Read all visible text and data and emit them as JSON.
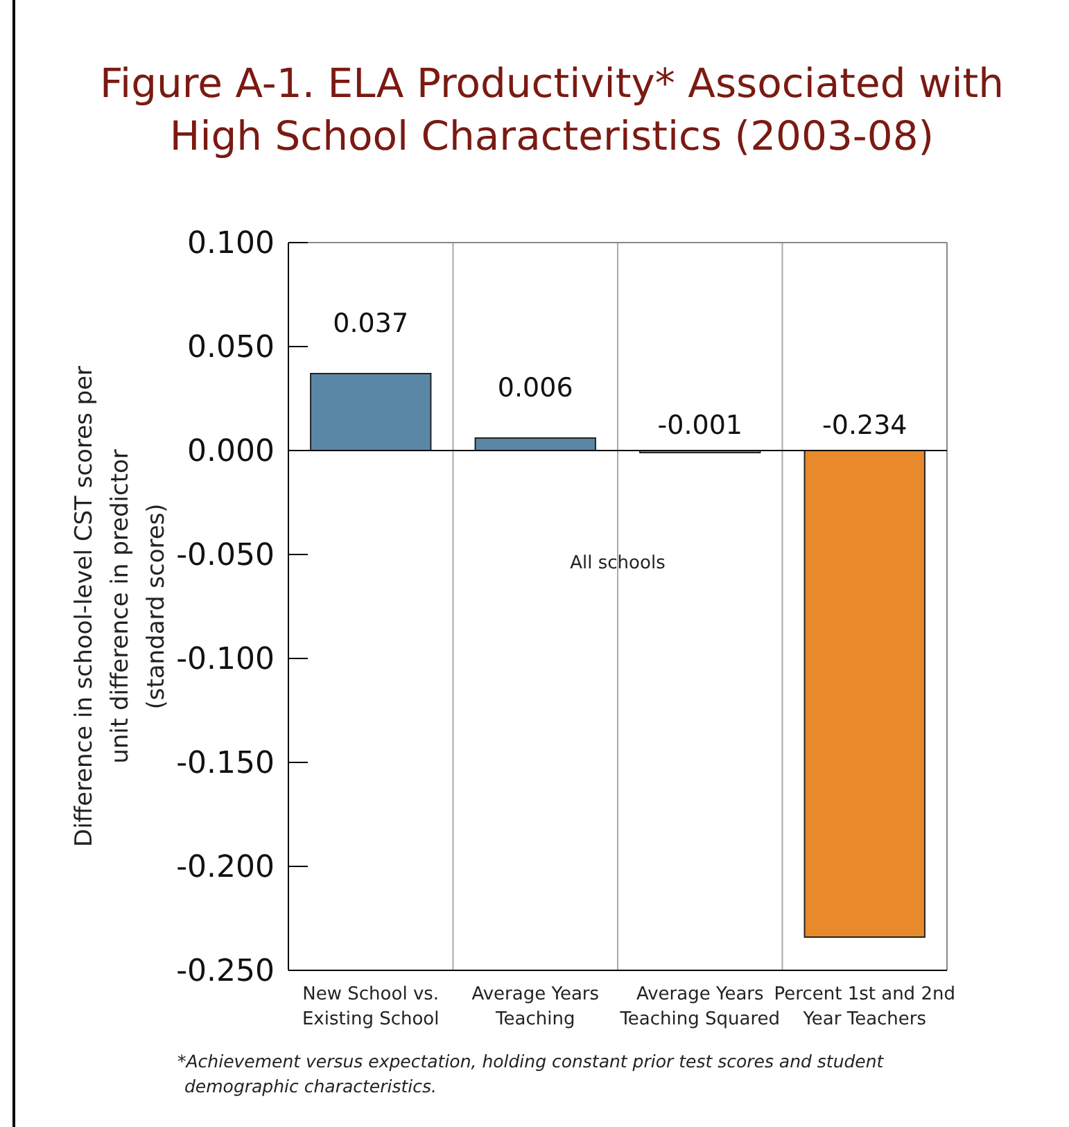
{
  "chart_data": {
    "type": "bar",
    "title": "Figure A-1. ELA Productivity* Associated with High School Characteristics (2003-08)",
    "ylabel": "Difference in school-level CST scores per unit difference in predictor (standard scores)",
    "categories": [
      "New School vs. Existing School",
      "Average Years Teaching",
      "Average Years Teaching Squared",
      "Percent 1st and 2nd Year Teachers"
    ],
    "values": [
      0.037,
      0.006,
      -0.001,
      -0.234
    ],
    "colors": [
      "#5b87a6",
      "#5b87a6",
      "#e8892b",
      "#e8892b"
    ],
    "data_labels": true,
    "ylim": [
      -0.25,
      0.1
    ],
    "yticks": [
      {
        "value": 0.1,
        "label": "0.100"
      },
      {
        "value": 0.05,
        "label": "0.050"
      },
      {
        "value": 0,
        "label": "0.000"
      },
      {
        "value": -0.05,
        "label": "-0.050"
      },
      {
        "value": -0.1,
        "label": "-0.100"
      },
      {
        "value": -0.15,
        "label": "-0.150"
      },
      {
        "value": -0.2,
        "label": "-0.200"
      },
      {
        "value": -0.25,
        "label": "-0.250"
      }
    ],
    "grid": "x",
    "annotations": [
      "All schools",
      "*Achievement versus expectation, holding constant prior test scores and student demographic characteristics."
    ]
  }
}
